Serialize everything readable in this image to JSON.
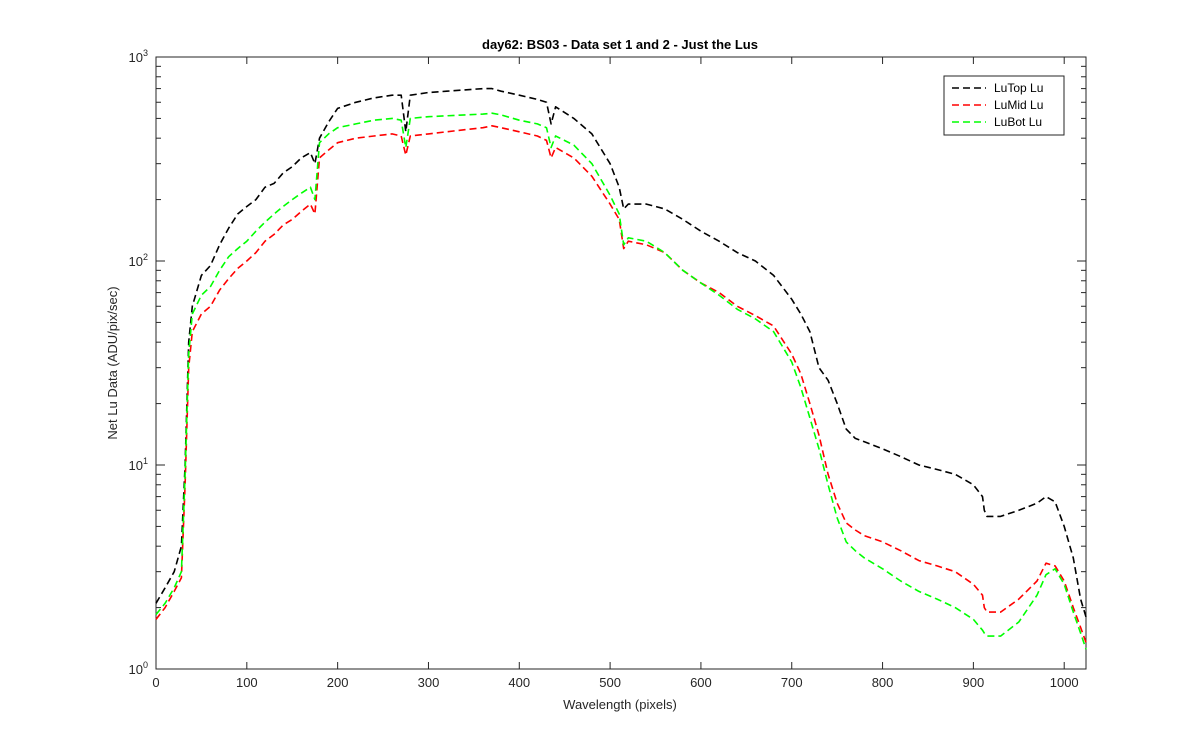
{
  "chart_data": {
    "type": "line",
    "title": "day62: BS03 - Data set 1 and 2 - Just the Lus",
    "xlabel": "Wavelength (pixels)",
    "ylabel": "Net Lu Data (ADU/pix/sec)",
    "xlim": [
      0,
      1024
    ],
    "ylim": [
      1,
      1000
    ],
    "yscale": "log",
    "xticks": [
      0,
      100,
      200,
      300,
      400,
      500,
      600,
      700,
      800,
      900,
      1000
    ],
    "xtick_labels": [
      "0",
      "100",
      "200",
      "300",
      "400",
      "500",
      "600",
      "700",
      "800",
      "900",
      "1000"
    ],
    "yticks": [
      1,
      10,
      100,
      1000
    ],
    "ytick_labels": [
      {
        "base": "10",
        "exp": "0"
      },
      {
        "base": "10",
        "exp": "1"
      },
      {
        "base": "10",
        "exp": "2"
      },
      {
        "base": "10",
        "exp": "3"
      }
    ],
    "grid": false,
    "legend_position": "top-right",
    "series": [
      {
        "name": "LuTop  Lu",
        "color": "#000000",
        "x": [
          0,
          10,
          20,
          28,
          32,
          36,
          40,
          50,
          60,
          70,
          80,
          90,
          100,
          110,
          120,
          130,
          140,
          150,
          160,
          170,
          175,
          180,
          190,
          200,
          220,
          240,
          260,
          270,
          275,
          280,
          300,
          320,
          340,
          360,
          370,
          380,
          400,
          420,
          430,
          435,
          440,
          460,
          480,
          500,
          510,
          515,
          520,
          540,
          560,
          580,
          600,
          620,
          640,
          660,
          680,
          700,
          710,
          720,
          730,
          740,
          750,
          760,
          770,
          780,
          800,
          820,
          840,
          860,
          880,
          900,
          910,
          912,
          915,
          930,
          950,
          970,
          980,
          990,
          1000,
          1010,
          1018,
          1024
        ],
        "y": [
          2.1,
          2.5,
          3.0,
          4.0,
          10,
          40,
          60,
          85,
          95,
          120,
          145,
          170,
          185,
          200,
          230,
          240,
          270,
          290,
          320,
          340,
          300,
          400,
          480,
          560,
          600,
          630,
          650,
          650,
          430,
          650,
          670,
          680,
          690,
          700,
          700,
          680,
          650,
          620,
          600,
          470,
          570,
          500,
          420,
          300,
          230,
          180,
          190,
          190,
          180,
          160,
          140,
          125,
          110,
          100,
          85,
          65,
          55,
          45,
          30,
          26,
          20,
          15,
          13.5,
          13,
          12,
          11,
          10,
          9.5,
          9,
          8,
          7,
          6,
          5.6,
          5.6,
          6.0,
          6.5,
          7.0,
          6.6,
          5.0,
          3.5,
          2.2,
          1.8
        ]
      },
      {
        "name": "LuMid  Lu",
        "color": "#ff0000",
        "x": [
          0,
          10,
          20,
          28,
          32,
          36,
          40,
          50,
          60,
          70,
          80,
          90,
          100,
          110,
          120,
          130,
          140,
          150,
          160,
          170,
          175,
          180,
          190,
          200,
          220,
          240,
          260,
          270,
          275,
          280,
          300,
          320,
          340,
          360,
          370,
          380,
          400,
          420,
          430,
          435,
          440,
          460,
          480,
          500,
          510,
          515,
          520,
          540,
          560,
          580,
          600,
          620,
          640,
          660,
          680,
          700,
          710,
          720,
          730,
          740,
          750,
          760,
          770,
          780,
          800,
          820,
          840,
          860,
          880,
          900,
          910,
          912,
          915,
          930,
          950,
          970,
          980,
          990,
          1000,
          1010,
          1018,
          1024
        ],
        "y": [
          1.75,
          2.0,
          2.4,
          2.8,
          8,
          30,
          45,
          55,
          60,
          72,
          82,
          92,
          100,
          110,
          125,
          135,
          150,
          160,
          175,
          190,
          170,
          320,
          350,
          380,
          400,
          410,
          420,
          410,
          330,
          410,
          420,
          430,
          440,
          450,
          460,
          450,
          430,
          410,
          390,
          320,
          360,
          320,
          260,
          190,
          160,
          115,
          125,
          120,
          110,
          90,
          78,
          70,
          60,
          54,
          48,
          35,
          28,
          20,
          14,
          9,
          6.5,
          5.2,
          4.8,
          4.5,
          4.2,
          3.8,
          3.4,
          3.2,
          3.0,
          2.6,
          2.3,
          2.0,
          1.9,
          1.9,
          2.2,
          2.7,
          3.3,
          3.2,
          2.7,
          2.0,
          1.6,
          1.35
        ]
      },
      {
        "name": "LuBot  Lu",
        "color": "#00ff00",
        "x": [
          0,
          10,
          20,
          28,
          32,
          36,
          40,
          50,
          60,
          70,
          80,
          90,
          100,
          110,
          120,
          130,
          140,
          150,
          160,
          170,
          175,
          180,
          190,
          200,
          220,
          240,
          260,
          270,
          275,
          280,
          300,
          320,
          340,
          360,
          370,
          380,
          400,
          420,
          430,
          435,
          440,
          460,
          480,
          500,
          510,
          515,
          520,
          540,
          560,
          580,
          600,
          620,
          640,
          660,
          680,
          700,
          710,
          720,
          730,
          740,
          750,
          760,
          770,
          780,
          800,
          820,
          840,
          860,
          880,
          900,
          910,
          912,
          915,
          930,
          950,
          970,
          980,
          990,
          1000,
          1010,
          1018,
          1024
        ],
        "y": [
          1.85,
          2.1,
          2.5,
          3.0,
          9,
          35,
          55,
          68,
          75,
          90,
          105,
          115,
          125,
          140,
          155,
          170,
          185,
          200,
          215,
          230,
          200,
          380,
          420,
          450,
          470,
          490,
          500,
          490,
          360,
          500,
          510,
          515,
          520,
          525,
          530,
          520,
          490,
          470,
          450,
          360,
          410,
          370,
          300,
          210,
          170,
          120,
          130,
          125,
          110,
          90,
          78,
          68,
          58,
          52,
          45,
          32,
          24,
          17,
          12,
          8,
          5.5,
          4.2,
          3.8,
          3.5,
          3.1,
          2.7,
          2.4,
          2.2,
          2.0,
          1.75,
          1.55,
          1.5,
          1.45,
          1.45,
          1.7,
          2.3,
          2.9,
          3.1,
          2.6,
          1.9,
          1.5,
          1.25
        ]
      }
    ]
  }
}
